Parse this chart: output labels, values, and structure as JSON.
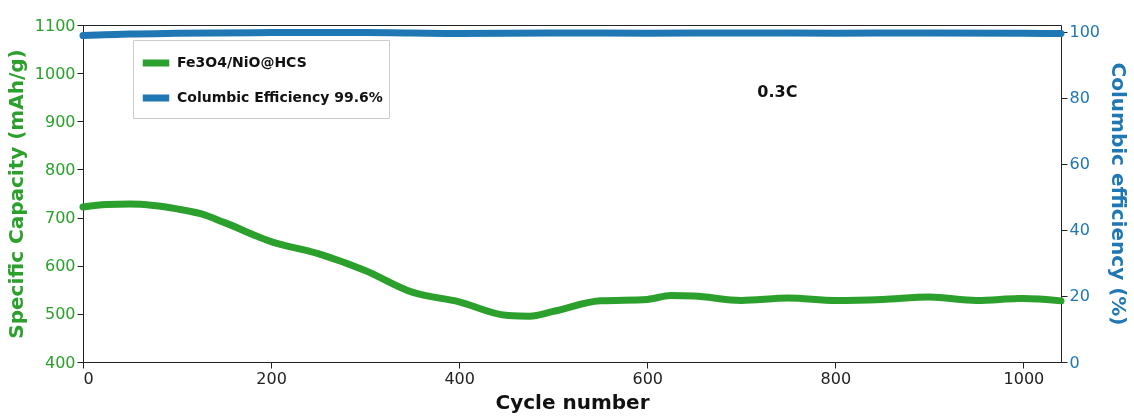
{
  "chart_data": {
    "type": "line",
    "xlabel": "Cycle number",
    "ylabel": "Specific Capacity (mAh/g)",
    "y2label": "Columbic efficiency (%)",
    "annotations": [
      "0.3C"
    ],
    "xlim": [
      0,
      1040
    ],
    "xticks": [
      0,
      200,
      400,
      600,
      800,
      1000
    ],
    "ylim": [
      400,
      1100
    ],
    "yticks": [
      400,
      500,
      600,
      700,
      800,
      900,
      1000,
      1100
    ],
    "y2lim": [
      0,
      102
    ],
    "y2ticks": [
      0,
      20,
      40,
      60,
      80,
      100
    ],
    "legend": "top left",
    "grid": false,
    "line_style": "solid",
    "marker": "none",
    "series": [
      {
        "name": "Fe3O4/NiO@HCS",
        "color": "#2ca02c",
        "x": [
          0,
          25,
          50,
          75,
          100,
          125,
          150,
          200,
          250,
          300,
          350,
          400,
          450,
          475,
          500,
          550,
          600,
          625,
          650,
          700,
          750,
          800,
          850,
          900,
          950,
          1000,
          1040
        ],
        "values": [
          722,
          727,
          728,
          725,
          718,
          708,
          690,
          650,
          625,
          590,
          545,
          525,
          497,
          495,
          505,
          527,
          530,
          538,
          537,
          528,
          533,
          528,
          530,
          535,
          528,
          532,
          527
        ]
      },
      {
        "name": "Columbic Efficiency 99.6%",
        "color": "#1f77b4",
        "axis": "y2",
        "x": [
          0,
          50,
          100,
          200,
          300,
          400,
          500,
          600,
          700,
          800,
          900,
          1000,
          1040
        ],
        "values": [
          98.8,
          99.3,
          99.5,
          99.7,
          99.7,
          99.4,
          99.6,
          99.5,
          99.6,
          99.5,
          99.6,
          99.5,
          99.4
        ]
      }
    ]
  }
}
